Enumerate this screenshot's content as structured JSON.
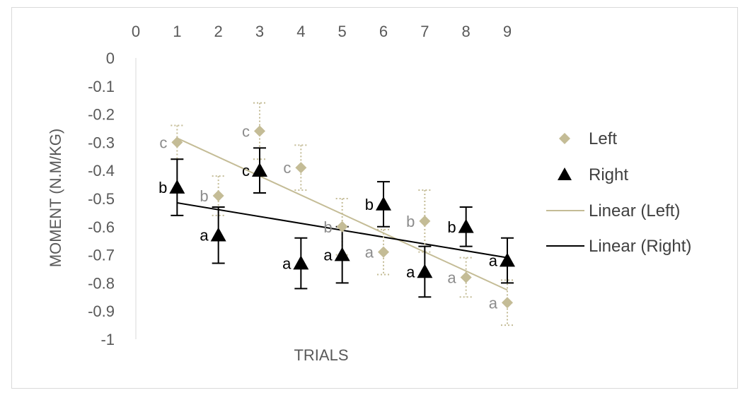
{
  "chart_data": {
    "type": "scatter",
    "title": "",
    "xlabel": "TRIALS",
    "ylabel": "MOMENT (N.M/KG)",
    "xlim": [
      0,
      9
    ],
    "ylim": [
      -1,
      0
    ],
    "x_ticks": [
      "0",
      "1",
      "2",
      "3",
      "4",
      "5",
      "6",
      "7",
      "8",
      "9"
    ],
    "y_ticks": [
      "0",
      "-0.1",
      "-0.2",
      "-0.3",
      "-0.4",
      "-0.5",
      "-0.6",
      "-0.7",
      "-0.8",
      "-0.9",
      "-1"
    ],
    "x_axis_position": "top",
    "grid": false,
    "legend_position": "right",
    "series": [
      {
        "name": "Left",
        "marker": "diamond",
        "color": "#c4bc96",
        "x": [
          1,
          2,
          3,
          4,
          5,
          6,
          7,
          8,
          9
        ],
        "y": [
          -0.3,
          -0.49,
          -0.26,
          -0.39,
          -0.6,
          -0.69,
          -0.58,
          -0.78,
          -0.87
        ],
        "error": [
          0.06,
          0.07,
          0.1,
          0.08,
          0.1,
          0.08,
          0.11,
          0.07,
          0.08
        ],
        "labels": [
          "c",
          "b",
          "c",
          "c",
          "b",
          "a",
          "b",
          "a",
          "a"
        ]
      },
      {
        "name": "Right",
        "marker": "triangle",
        "color": "#000000",
        "x": [
          1,
          2,
          3,
          4,
          5,
          6,
          7,
          8,
          9
        ],
        "y": [
          -0.46,
          -0.63,
          -0.4,
          -0.73,
          -0.7,
          -0.52,
          -0.76,
          -0.6,
          -0.72
        ],
        "error": [
          0.1,
          0.1,
          0.08,
          0.09,
          0.1,
          0.08,
          0.09,
          0.07,
          0.08
        ],
        "labels": [
          "b",
          "a",
          "c",
          "a",
          "a",
          "b",
          "a",
          "b",
          "a"
        ]
      }
    ],
    "trendlines": [
      {
        "name": "Linear (Left)",
        "color": "#c4bc96",
        "x": [
          1,
          9
        ],
        "y": [
          -0.285,
          -0.825
        ]
      },
      {
        "name": "Linear (Right)",
        "color": "#000000",
        "x": [
          1,
          9
        ],
        "y": [
          -0.515,
          -0.71
        ]
      }
    ]
  }
}
